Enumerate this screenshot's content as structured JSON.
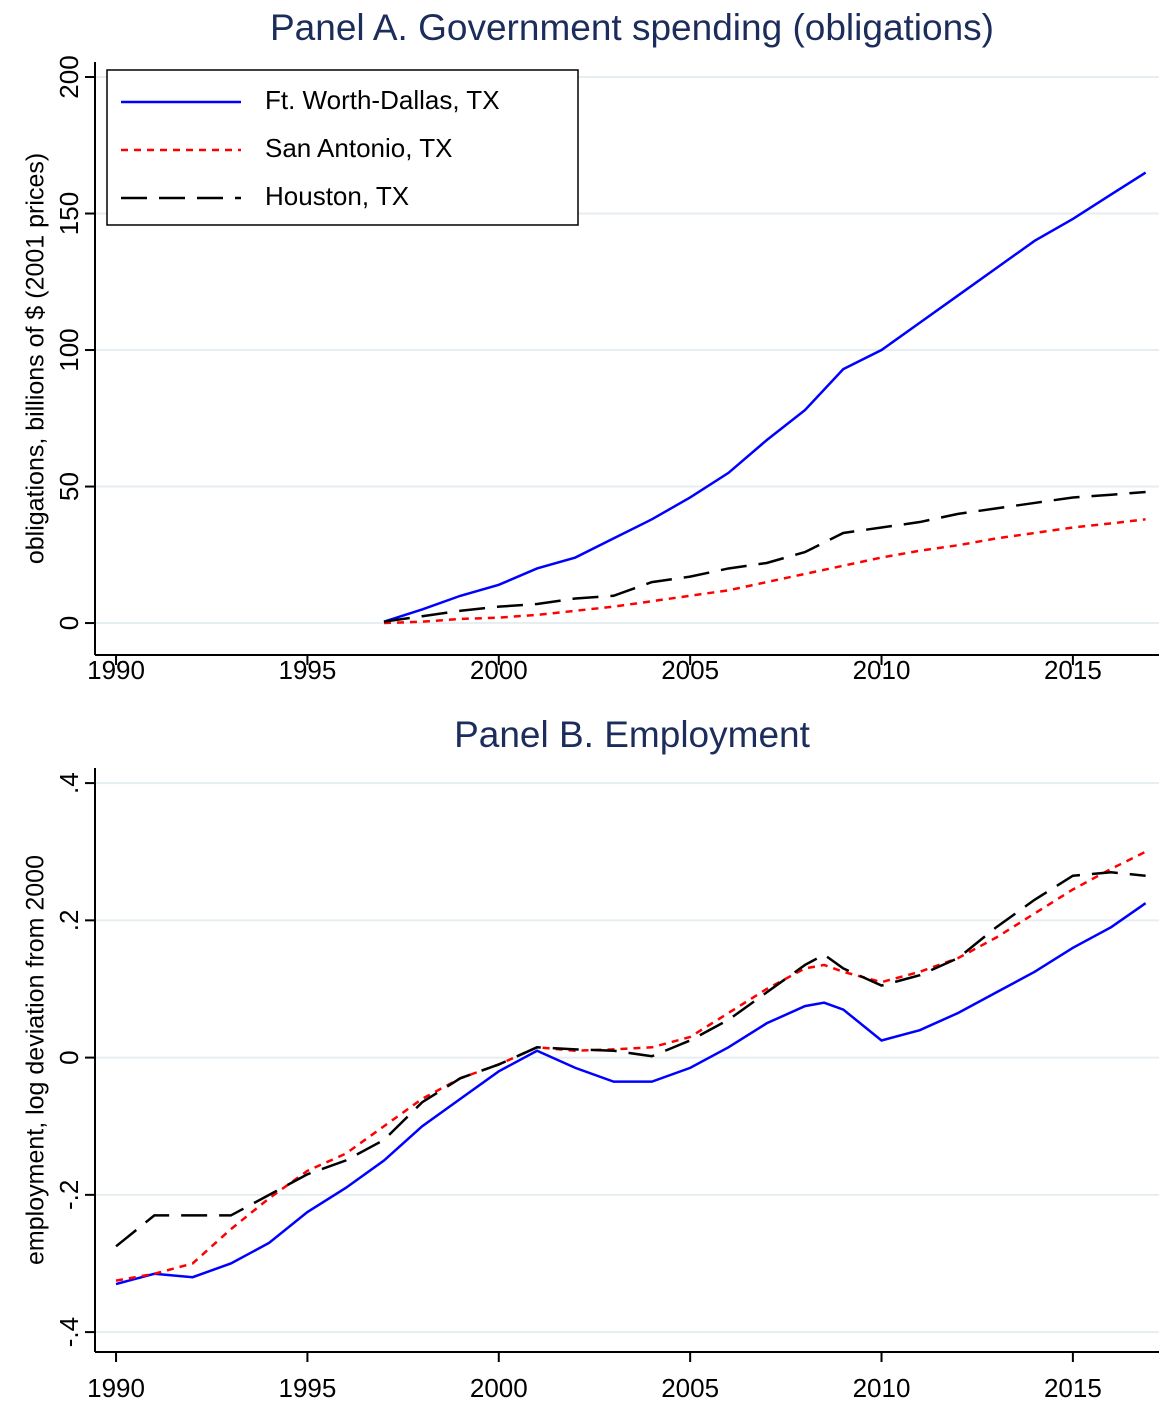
{
  "chart_data": [
    {
      "type": "line",
      "title": "Panel A. Government spending (obligations)",
      "y_label": "obligations, billions of $ (2001 prices)",
      "x": [
        1997,
        1998,
        1999,
        2000,
        2001,
        2002,
        2003,
        2004,
        2005,
        2006,
        2007,
        2008,
        2009,
        2010,
        2011,
        2012,
        2013,
        2014,
        2015,
        2016,
        2016.9
      ],
      "series": [
        {
          "name": "Ft. Worth-Dallas, TX",
          "color": "#0000ff",
          "style": "solid",
          "values": [
            0.5,
            5,
            10,
            14,
            20,
            24,
            31,
            38,
            46,
            55,
            67,
            78,
            93,
            100,
            110,
            120,
            130,
            140,
            148,
            157,
            165
          ]
        },
        {
          "name": "San Antonio, TX",
          "color": "#ff0000",
          "style": "short-dash",
          "values": [
            0,
            0.5,
            1.5,
            2,
            3,
            4.5,
            6,
            8,
            10,
            12,
            15,
            18,
            21,
            24,
            26.5,
            28.5,
            31,
            33,
            35,
            36.5,
            38
          ]
        },
        {
          "name": "Houston, TX",
          "color": "#000000",
          "style": "long-dash",
          "values": [
            0.5,
            2.5,
            4.5,
            6,
            7,
            9,
            10,
            15,
            17,
            20,
            22,
            26,
            33,
            35,
            37,
            40,
            42,
            44,
            46,
            47,
            48
          ]
        }
      ],
      "xlim": [
        1989.45,
        2017.25
      ],
      "xticks": [
        1990,
        1995,
        2000,
        2005,
        2010,
        2015
      ],
      "ylim": [
        -11.7,
        205.5
      ],
      "yticks": [
        0,
        50,
        100,
        150,
        200
      ],
      "grid": true,
      "legend": "top-left"
    },
    {
      "type": "line",
      "title": "Panel B. Employment",
      "y_label": "employment, log deviation from 2000",
      "x": [
        1990,
        1991,
        1992,
        1993,
        1994,
        1995,
        1996,
        1997,
        1998,
        1999,
        2000,
        2001,
        2002,
        2003,
        2004,
        2005,
        2006,
        2007,
        2008,
        2008.5,
        2009,
        2010,
        2011,
        2012,
        2013,
        2014,
        2015,
        2016,
        2016.9
      ],
      "series": [
        {
          "color": "#0000ff",
          "style": "solid",
          "values": [
            -0.33,
            -0.315,
            -0.32,
            -0.3,
            -0.27,
            -0.225,
            -0.19,
            -0.15,
            -0.1,
            -0.06,
            -0.02,
            0.01,
            -0.015,
            -0.035,
            -0.035,
            -0.015,
            0.015,
            0.05,
            0.075,
            0.08,
            0.07,
            0.025,
            0.04,
            0.065,
            0.095,
            0.125,
            0.16,
            0.19,
            0.225
          ]
        },
        {
          "color": "#ff0000",
          "style": "short-dash",
          "values": [
            -0.325,
            -0.315,
            -0.3,
            -0.25,
            -0.205,
            -0.165,
            -0.14,
            -0.1,
            -0.06,
            -0.03,
            -0.01,
            0.015,
            0.01,
            0.012,
            0.015,
            0.03,
            0.065,
            0.1,
            0.13,
            0.135,
            0.125,
            0.11,
            0.125,
            0.145,
            0.175,
            0.21,
            0.245,
            0.275,
            0.3
          ]
        },
        {
          "color": "#000000",
          "style": "long-dash",
          "values": [
            -0.275,
            -0.23,
            -0.23,
            -0.23,
            -0.2,
            -0.17,
            -0.15,
            -0.12,
            -0.065,
            -0.03,
            -0.01,
            0.015,
            0.012,
            0.01,
            0.002,
            0.025,
            0.055,
            0.095,
            0.135,
            0.15,
            0.13,
            0.105,
            0.12,
            0.145,
            0.19,
            0.23,
            0.265,
            0.27,
            0.265
          ]
        }
      ],
      "xlim": [
        1989.45,
        2017.25
      ],
      "xticks": [
        1990,
        1995,
        2000,
        2005,
        2010,
        2015
      ],
      "ylim": [
        -0.429,
        0.422
      ],
      "yticks": [
        {
          "value": -0.4,
          "label": "-.4"
        },
        {
          "value": -0.2,
          "label": "-.2"
        },
        0,
        {
          "value": 0.2,
          "label": ".2"
        },
        {
          "value": 0.4,
          "label": ".4"
        }
      ],
      "grid": true
    }
  ]
}
